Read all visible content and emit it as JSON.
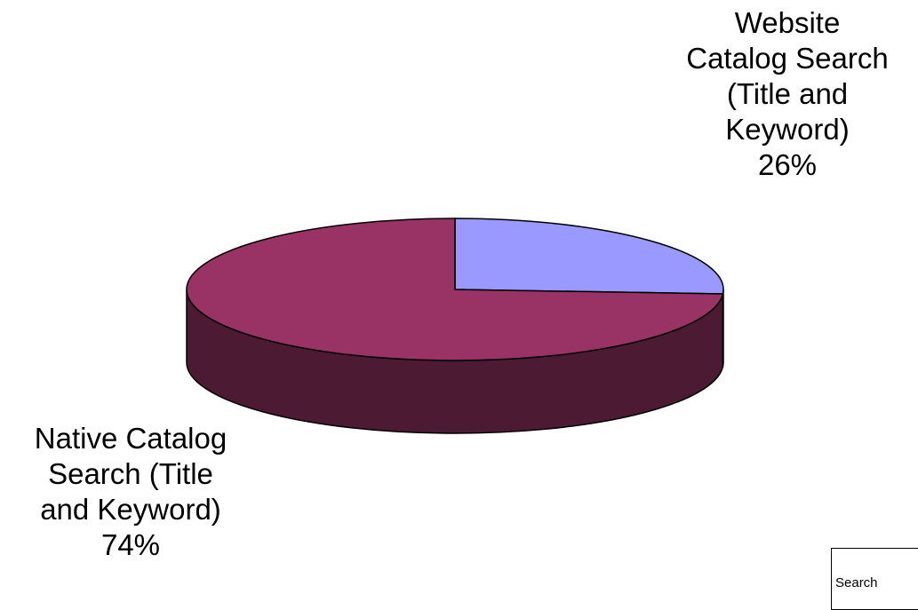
{
  "chart_data": {
    "type": "pie",
    "style": "3d",
    "title": "",
    "slices": [
      {
        "label_lines": [
          "Website",
          "Catalog Search",
          "(Title and",
          "Keyword)"
        ],
        "percent_label": "26%",
        "value": 26,
        "color": "#9999ff",
        "side_color": "#4a4a80"
      },
      {
        "label_lines": [
          "Native Catalog",
          "Search (Title",
          "and Keyword)"
        ],
        "percent_label": "74%",
        "value": 74,
        "color": "#993366",
        "side_color": "#4d1a33"
      }
    ],
    "legend": {
      "placement": "bottom-right",
      "visible_text": "Search"
    }
  }
}
